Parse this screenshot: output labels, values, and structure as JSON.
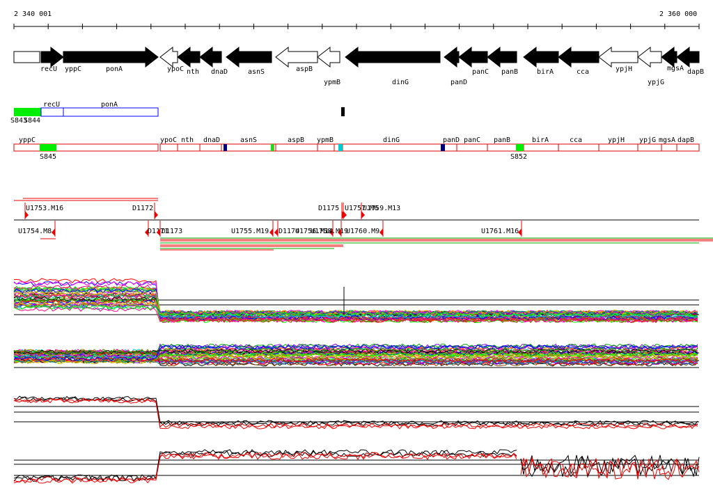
{
  "axis": {
    "start_label": "2 340 001",
    "end_label": "2 360 000",
    "start": 2340001,
    "end": 2360000
  },
  "genes": [
    {
      "name": "yppC",
      "strand": "+",
      "fill": "white",
      "tip": false
    },
    {
      "name": "recU",
      "strand": "+",
      "fill": "black"
    },
    {
      "name": "ponA",
      "strand": "+",
      "fill": "black"
    },
    {
      "name": "ypoC",
      "strand": "-",
      "fill": "white"
    },
    {
      "name": "nth",
      "strand": "-",
      "fill": "black"
    },
    {
      "name": "dnaD",
      "strand": "-",
      "fill": "black"
    },
    {
      "name": "asnS",
      "strand": "-",
      "fill": "black"
    },
    {
      "name": "aspB",
      "strand": "-",
      "fill": "white"
    },
    {
      "name": "ypmB",
      "strand": "-",
      "fill": "white"
    },
    {
      "name": "dinG",
      "strand": "-",
      "fill": "black"
    },
    {
      "name": "panD",
      "strand": "-",
      "fill": "black"
    },
    {
      "name": "panC",
      "strand": "-",
      "fill": "black"
    },
    {
      "name": "panB",
      "strand": "-",
      "fill": "black"
    },
    {
      "name": "birA",
      "strand": "-",
      "fill": "black"
    },
    {
      "name": "cca",
      "strand": "-",
      "fill": "black"
    },
    {
      "name": "ypjH",
      "strand": "-",
      "fill": "white"
    },
    {
      "name": "ypjG",
      "strand": "-",
      "fill": "white"
    },
    {
      "name": "mgsA",
      "strand": "-",
      "fill": "black"
    },
    {
      "name": "dapB",
      "strand": "-",
      "fill": "black"
    }
  ],
  "operon_plus": {
    "genes": [
      "recU",
      "ponA"
    ],
    "sites": [
      "S843",
      "S844"
    ]
  },
  "operon_minus": {
    "genes_left": [
      "yppC"
    ],
    "genes_right": [
      "ypoC",
      "nth",
      "dnaD",
      "asnS",
      "aspB",
      "ypmB",
      "dinG",
      "panD",
      "panC",
      "panB",
      "birA",
      "cca",
      "ypjH",
      "ypjG",
      "mgsA",
      "dapB"
    ],
    "sites": [
      "S845",
      "S852"
    ]
  },
  "transcripts_top": [
    "U1753.M16",
    "D1172",
    "D1175",
    "U1757.M6",
    "U1759.M13"
  ],
  "transcripts_bottom": [
    "U1754.M8",
    "D1171",
    "D1173",
    "U1755.M19",
    "D1174",
    "U1756.M14",
    "U1758.M19",
    "U1760.M9",
    "U1761.M16"
  ],
  "colors": {
    "gene_fill": "#000000",
    "site_fill": "#00ee00",
    "operon_plus_border": "#0000ff",
    "operon_minus_border": "#dd0000",
    "transcript_marker": "#ee0000",
    "tiling_red": "#ee0000",
    "tiling_green": "#00aa00",
    "profile_black": "#000000",
    "profile_red": "#ee0000",
    "terminator_blue": "#000080"
  }
}
